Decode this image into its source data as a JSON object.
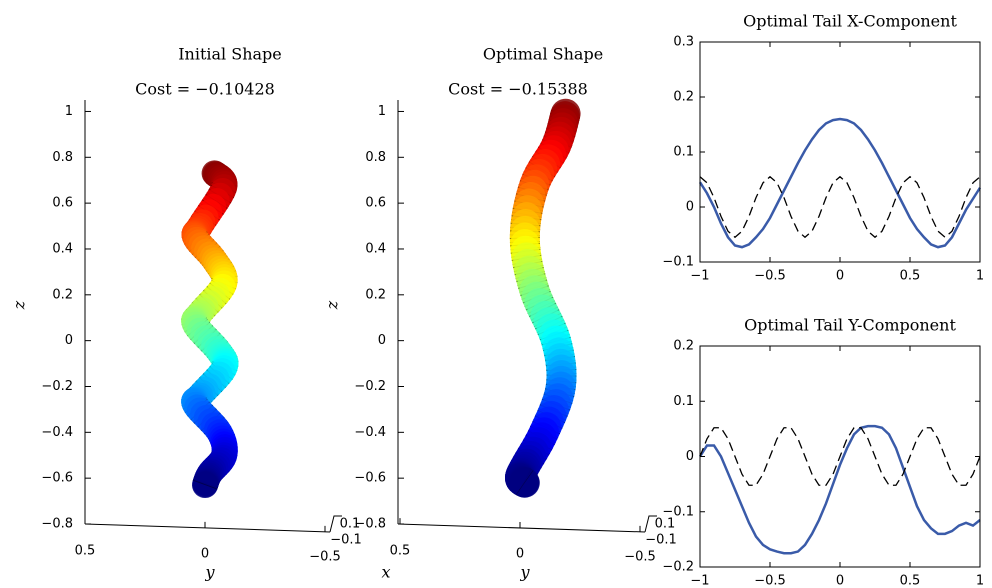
{
  "chart_data": [
    {
      "type": "tube3d",
      "title": "Initial Shape",
      "subtitle": "Cost = −0.10428",
      "zlabel": "z",
      "ylabel": "y",
      "zlim": [
        -0.8,
        1.05
      ],
      "zticks": [
        {
          "value": -0.8,
          "label": "−0.8"
        },
        {
          "value": -0.6,
          "label": "−0.6"
        },
        {
          "value": -0.4,
          "label": "−0.4"
        },
        {
          "value": -0.2,
          "label": "−0.2"
        },
        0,
        0.2,
        0.4,
        0.6,
        0.8,
        1
      ],
      "yticks": [
        0.5,
        0,
        {
          "value": -0.5,
          "label": "−0.5"
        }
      ],
      "xticks": [
        0.1,
        {
          "value": -0.1,
          "label": "−0.1"
        }
      ],
      "centerline": {
        "y": [
          -0.04,
          -0.08,
          0.02,
          0.04,
          -0.04,
          -0.08,
          0.02,
          0.04,
          -0.06,
          -0.08,
          0.02,
          0.04,
          -0.06,
          -0.08,
          -0.02,
          0
        ],
        "z": [
          0.73,
          0.67,
          0.5,
          0.45,
          0.35,
          0.25,
          0.12,
          0.07,
          -0.05,
          -0.12,
          -0.24,
          -0.28,
          -0.4,
          -0.5,
          -0.58,
          -0.63
        ]
      }
    },
    {
      "type": "tube3d",
      "title": "Optimal Shape",
      "subtitle": "Cost = −0.15388",
      "zlabel": "z",
      "ylabel": "y",
      "xlabel": "x",
      "zlim": [
        -0.8,
        1.05
      ],
      "zticks": [
        {
          "value": -0.8,
          "label": "−0.8"
        },
        {
          "value": -0.6,
          "label": "−0.6"
        },
        {
          "value": -0.4,
          "label": "−0.4"
        },
        {
          "value": -0.2,
          "label": "−0.2"
        },
        0,
        0.2,
        0.4,
        0.6,
        0.8,
        1
      ],
      "yticks": [
        0.5,
        0,
        {
          "value": -0.5,
          "label": "−0.5"
        }
      ],
      "xticks": [
        0.1,
        {
          "value": -0.1,
          "label": "−0.1"
        }
      ],
      "centerline": {
        "y": [
          -0.19,
          -0.15,
          -0.06,
          -0.02,
          -0.06,
          -0.15,
          -0.17,
          -0.1,
          -0.02,
          0,
          -0.02
        ],
        "z": [
          0.99,
          0.85,
          0.68,
          0.45,
          0.22,
          0,
          -0.2,
          -0.4,
          -0.55,
          -0.6,
          -0.62
        ]
      }
    },
    {
      "type": "line",
      "title": "Optimal Tail X-Component",
      "x": [
        -1,
        -0.95,
        -0.9,
        -0.85,
        -0.8,
        -0.75,
        -0.7,
        -0.65,
        -0.6,
        -0.55,
        -0.5,
        -0.45,
        -0.4,
        -0.35,
        -0.3,
        -0.25,
        -0.2,
        -0.15,
        -0.1,
        -0.05,
        0,
        0.05,
        0.1,
        0.15,
        0.2,
        0.25,
        0.3,
        0.35,
        0.4,
        0.45,
        0.5,
        0.55,
        0.6,
        0.65,
        0.7,
        0.75,
        0.8,
        0.85,
        0.9,
        0.95,
        1
      ],
      "series": [
        {
          "color": "#3a5ba9",
          "style": "solid",
          "values": [
            0.045,
            0.025,
            0.0,
            -0.03,
            -0.055,
            -0.07,
            -0.073,
            -0.068,
            -0.055,
            -0.04,
            -0.02,
            0.005,
            0.03,
            0.055,
            0.08,
            0.103,
            0.123,
            0.14,
            0.152,
            0.158,
            0.16,
            0.158,
            0.152,
            0.14,
            0.123,
            0.103,
            0.08,
            0.055,
            0.03,
            0.005,
            -0.02,
            -0.04,
            -0.055,
            -0.068,
            -0.073,
            -0.07,
            -0.055,
            -0.03,
            -0.005,
            0.015,
            0.035
          ]
        },
        {
          "color": "#000000",
          "style": "dashed",
          "values": [
            0.055,
            0.044,
            0.017,
            -0.017,
            -0.044,
            -0.055,
            -0.044,
            -0.017,
            0.017,
            0.044,
            0.055,
            0.044,
            0.017,
            -0.017,
            -0.044,
            -0.055,
            -0.044,
            -0.017,
            0.017,
            0.044,
            0.055,
            0.044,
            0.017,
            -0.017,
            -0.044,
            -0.055,
            -0.044,
            -0.017,
            0.017,
            0.044,
            0.055,
            0.044,
            0.017,
            -0.017,
            -0.044,
            -0.055,
            -0.044,
            -0.017,
            0.017,
            0.044,
            0.055
          ]
        }
      ],
      "xlim": [
        -1,
        1
      ],
      "ylim": [
        -0.1,
        0.3
      ],
      "xticks": [
        {
          "value": -1,
          "label": "−1"
        },
        {
          "value": -0.5,
          "label": "−0.5"
        },
        0,
        0.5,
        1
      ],
      "yticks": [
        {
          "value": -0.1,
          "label": "−0.1"
        },
        0,
        0.1,
        0.2,
        0.3
      ]
    },
    {
      "type": "line",
      "title": "Optimal Tail Y-Component",
      "x": [
        -1,
        -0.95,
        -0.9,
        -0.85,
        -0.8,
        -0.75,
        -0.7,
        -0.65,
        -0.6,
        -0.55,
        -0.5,
        -0.45,
        -0.4,
        -0.35,
        -0.3,
        -0.25,
        -0.2,
        -0.15,
        -0.1,
        -0.05,
        0,
        0.05,
        0.1,
        0.15,
        0.2,
        0.25,
        0.3,
        0.35,
        0.4,
        0.45,
        0.5,
        0.55,
        0.6,
        0.65,
        0.7,
        0.75,
        0.8,
        0.85,
        0.9,
        0.95,
        1
      ],
      "series": [
        {
          "color": "#3a5ba9",
          "style": "solid",
          "values": [
            0.0,
            0.02,
            0.02,
            0.0,
            -0.03,
            -0.06,
            -0.09,
            -0.12,
            -0.145,
            -0.16,
            -0.168,
            -0.172,
            -0.175,
            -0.175,
            -0.172,
            -0.16,
            -0.14,
            -0.115,
            -0.085,
            -0.05,
            -0.015,
            0.015,
            0.04,
            0.052,
            0.055,
            0.055,
            0.052,
            0.04,
            0.015,
            -0.02,
            -0.055,
            -0.09,
            -0.115,
            -0.13,
            -0.14,
            -0.14,
            -0.135,
            -0.125,
            -0.12,
            -0.125,
            -0.115
          ]
        },
        {
          "color": "#000000",
          "style": "dashed",
          "values": [
            0,
            0.032,
            0.052,
            0.052,
            0.032,
            0,
            -0.032,
            -0.052,
            -0.052,
            -0.032,
            0,
            0.032,
            0.052,
            0.052,
            0.032,
            0,
            -0.032,
            -0.052,
            -0.052,
            -0.032,
            0,
            0.032,
            0.052,
            0.052,
            0.032,
            0,
            -0.032,
            -0.052,
            -0.052,
            -0.032,
            0,
            0.032,
            0.052,
            0.052,
            0.032,
            0,
            -0.032,
            -0.052,
            -0.052,
            -0.032,
            0
          ]
        }
      ],
      "xlim": [
        -1,
        1
      ],
      "ylim": [
        -0.2,
        0.2
      ],
      "xticks": [
        {
          "value": -1,
          "label": "−1"
        },
        {
          "value": -0.5,
          "label": "−0.5"
        },
        0,
        0.5,
        1
      ],
      "yticks": [
        {
          "value": -0.2,
          "label": "−0.2"
        },
        {
          "value": -0.1,
          "label": "−0.1"
        },
        0,
        0.1,
        0.2
      ]
    }
  ]
}
